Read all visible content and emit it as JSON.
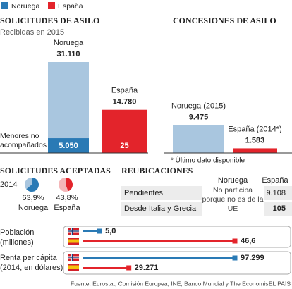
{
  "legend": [
    {
      "name": "Noruega",
      "color": "#2a7ab5"
    },
    {
      "name": "España",
      "color": "#e3242b"
    }
  ],
  "chart_data": [
    {
      "type": "bar",
      "title": "SOLICITUDES DE ASILO",
      "subtitle": "Recibidas en 2015",
      "categories": [
        "Noruega",
        "España"
      ],
      "series": [
        {
          "values": [
            31110,
            14780
          ],
          "value_labels": [
            "31.110",
            "14.780"
          ],
          "colors": [
            "#a9c6df",
            "#e3242b"
          ]
        },
        {
          "name": "Menores no acompañados",
          "values": [
            5050,
            25
          ],
          "value_labels": [
            "5.050",
            "25"
          ],
          "colors": [
            "#2a7ab5",
            "#e3242b"
          ]
        }
      ]
    },
    {
      "type": "bar",
      "title": "CONCESIONES DE ASILO",
      "categories": [
        "Noruega (2015)",
        "España (2014*)"
      ],
      "series": [
        {
          "values": [
            9475,
            1583
          ],
          "value_labels": [
            "9.475",
            "1.583"
          ],
          "colors": [
            "#a9c6df",
            "#e3242b"
          ]
        }
      ],
      "note": "* Último dato disponible"
    },
    {
      "type": "pie",
      "title": "SOLICITUDES ACEPTADAS",
      "subtitle": "2014",
      "categories": [
        "Noruega",
        "España"
      ],
      "values": [
        63.9,
        43.8
      ],
      "value_labels": [
        "63,9%",
        "43,8%"
      ],
      "colors": [
        "#2a7ab5",
        "#e3242b"
      ],
      "rest_colors": [
        "#a9c6df",
        "#f4b6b8"
      ]
    },
    {
      "type": "dot",
      "title": "Población",
      "subtitle": "(millones)",
      "values": [
        5.0,
        46.6
      ],
      "value_labels": [
        "5,0",
        "46,6"
      ],
      "colors": [
        "#2a7ab5",
        "#e3242b"
      ]
    },
    {
      "type": "dot",
      "title": "Renta per cápita",
      "subtitle": "(2014, en dólares)",
      "values": [
        97299,
        29271
      ],
      "value_labels": [
        "97.299",
        "29.271"
      ],
      "colors": [
        "#2a7ab5",
        "#e3242b"
      ]
    }
  ],
  "table": {
    "title": "REUBICACIONES",
    "columns": [
      "Noruega",
      "España"
    ],
    "rows": [
      {
        "label": "Pendientes",
        "espana": "9.108"
      },
      {
        "label": "Desde Italia y Grecia",
        "espana": "105"
      }
    ],
    "noruega": "No participa porque no es de la UE"
  },
  "source": "Fuente: Eurostat, Comisión Europea, INE, Banco Mundial y The Economist.",
  "brand": "EL PAÍS"
}
